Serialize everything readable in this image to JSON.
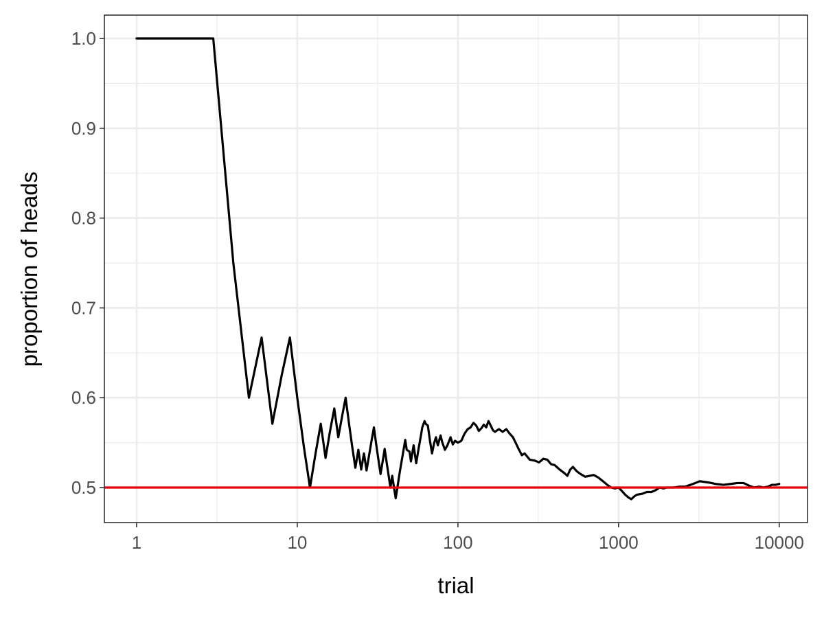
{
  "chart_data": {
    "type": "line",
    "xlabel": "trial",
    "ylabel": "proportion of heads",
    "x_scale": "log10",
    "xlim": [
      0.63,
      15000
    ],
    "ylim": [
      0.461,
      1.026
    ],
    "x_ticks": [
      1,
      10,
      100,
      1000,
      10000
    ],
    "x_tick_labels": [
      "1",
      "10",
      "100",
      "1000",
      "10000"
    ],
    "y_ticks": [
      0.5,
      0.6,
      0.7,
      0.8,
      0.9,
      1.0
    ],
    "y_tick_labels": [
      "0.5",
      "0.6",
      "0.7",
      "0.8",
      "0.9",
      "1.0"
    ],
    "grid": true,
    "reference_line": {
      "y": 0.5,
      "color": "#e8000b"
    },
    "series": [
      {
        "color": "#000000",
        "points": [
          [
            1,
            1.0
          ],
          [
            2,
            1.0
          ],
          [
            3,
            1.0
          ],
          [
            4,
            0.75
          ],
          [
            5,
            0.6
          ],
          [
            6,
            0.667
          ],
          [
            7,
            0.571
          ],
          [
            8,
            0.625
          ],
          [
            9,
            0.667
          ],
          [
            10,
            0.6
          ],
          [
            11,
            0.545
          ],
          [
            12,
            0.5
          ],
          [
            13,
            0.538
          ],
          [
            14,
            0.571
          ],
          [
            15,
            0.533
          ],
          [
            16,
            0.563
          ],
          [
            17,
            0.588
          ],
          [
            18,
            0.556
          ],
          [
            19,
            0.579
          ],
          [
            20,
            0.6
          ],
          [
            21,
            0.571
          ],
          [
            22,
            0.545
          ],
          [
            23,
            0.522
          ],
          [
            24,
            0.542
          ],
          [
            25,
            0.52
          ],
          [
            26,
            0.538
          ],
          [
            27,
            0.519
          ],
          [
            28,
            0.536
          ],
          [
            29,
            0.552
          ],
          [
            30,
            0.567
          ],
          [
            31,
            0.548
          ],
          [
            32,
            0.531
          ],
          [
            33,
            0.515
          ],
          [
            34,
            0.529
          ],
          [
            35,
            0.543
          ],
          [
            36,
            0.528
          ],
          [
            37,
            0.514
          ],
          [
            38,
            0.5
          ],
          [
            39,
            0.513
          ],
          [
            40,
            0.5
          ],
          [
            41,
            0.488
          ],
          [
            42,
            0.5
          ],
          [
            43,
            0.512
          ],
          [
            44,
            0.523
          ],
          [
            45,
            0.533
          ],
          [
            47,
            0.553
          ],
          [
            48,
            0.542
          ],
          [
            50,
            0.54
          ],
          [
            51,
            0.529
          ],
          [
            53,
            0.547
          ],
          [
            55,
            0.527
          ],
          [
            57,
            0.544
          ],
          [
            59,
            0.559
          ],
          [
            60,
            0.567
          ],
          [
            62,
            0.574
          ],
          [
            63,
            0.571
          ],
          [
            65,
            0.569
          ],
          [
            67,
            0.552
          ],
          [
            69,
            0.538
          ],
          [
            71,
            0.549
          ],
          [
            73,
            0.556
          ],
          [
            75,
            0.547
          ],
          [
            78,
            0.558
          ],
          [
            80,
            0.55
          ],
          [
            83,
            0.542
          ],
          [
            86,
            0.547
          ],
          [
            90,
            0.556
          ],
          [
            93,
            0.548
          ],
          [
            96,
            0.552
          ],
          [
            100,
            0.55
          ],
          [
            105,
            0.552
          ],
          [
            110,
            0.56
          ],
          [
            115,
            0.565
          ],
          [
            120,
            0.567
          ],
          [
            125,
            0.572
          ],
          [
            130,
            0.569
          ],
          [
            135,
            0.563
          ],
          [
            140,
            0.566
          ],
          [
            145,
            0.57
          ],
          [
            150,
            0.567
          ],
          [
            155,
            0.574
          ],
          [
            160,
            0.569
          ],
          [
            165,
            0.564
          ],
          [
            170,
            0.562
          ],
          [
            180,
            0.565
          ],
          [
            190,
            0.562
          ],
          [
            200,
            0.565
          ],
          [
            210,
            0.56
          ],
          [
            220,
            0.556
          ],
          [
            230,
            0.549
          ],
          [
            240,
            0.542
          ],
          [
            250,
            0.536
          ],
          [
            260,
            0.538
          ],
          [
            280,
            0.531
          ],
          [
            300,
            0.53
          ],
          [
            320,
            0.528
          ],
          [
            340,
            0.532
          ],
          [
            360,
            0.531
          ],
          [
            380,
            0.526
          ],
          [
            400,
            0.525
          ],
          [
            430,
            0.52
          ],
          [
            460,
            0.516
          ],
          [
            480,
            0.513
          ],
          [
            500,
            0.52
          ],
          [
            520,
            0.523
          ],
          [
            550,
            0.518
          ],
          [
            580,
            0.515
          ],
          [
            620,
            0.512
          ],
          [
            660,
            0.513
          ],
          [
            700,
            0.514
          ],
          [
            750,
            0.511
          ],
          [
            800,
            0.507
          ],
          [
            850,
            0.503
          ],
          [
            900,
            0.5
          ],
          [
            950,
            0.499
          ],
          [
            1000,
            0.5
          ],
          [
            1050,
            0.496
          ],
          [
            1100,
            0.492
          ],
          [
            1150,
            0.489
          ],
          [
            1200,
            0.487
          ],
          [
            1250,
            0.49
          ],
          [
            1300,
            0.492
          ],
          [
            1400,
            0.493
          ],
          [
            1500,
            0.495
          ],
          [
            1600,
            0.495
          ],
          [
            1700,
            0.497
          ],
          [
            1800,
            0.5
          ],
          [
            1900,
            0.499
          ],
          [
            2000,
            0.5
          ],
          [
            2200,
            0.5
          ],
          [
            2400,
            0.501
          ],
          [
            2600,
            0.501
          ],
          [
            2800,
            0.503
          ],
          [
            3000,
            0.505
          ],
          [
            3200,
            0.507
          ],
          [
            3500,
            0.506
          ],
          [
            3800,
            0.505
          ],
          [
            4000,
            0.504
          ],
          [
            4500,
            0.503
          ],
          [
            5000,
            0.504
          ],
          [
            5500,
            0.505
          ],
          [
            6000,
            0.505
          ],
          [
            6500,
            0.502
          ],
          [
            7000,
            0.5
          ],
          [
            7500,
            0.501
          ],
          [
            8000,
            0.5
          ],
          [
            8500,
            0.501
          ],
          [
            9000,
            0.503
          ],
          [
            9500,
            0.503
          ],
          [
            10000,
            0.504
          ]
        ]
      }
    ]
  }
}
